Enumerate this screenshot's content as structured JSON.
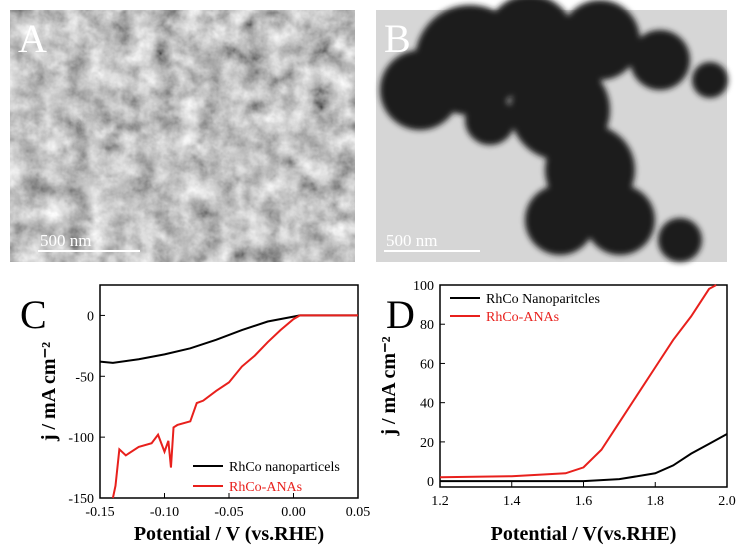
{
  "panels": [
    {
      "label": "A",
      "scale_bar": "500 nm"
    },
    {
      "label": "B",
      "scale_bar": "500 nm"
    }
  ],
  "chart_data": [
    {
      "type": "line",
      "panel_label": "C",
      "xlabel": "Potential / V (vs.RHE)",
      "ylabel": "j / mA cm⁻²",
      "xlim": [
        -0.15,
        0.05
      ],
      "ylim": [
        -150,
        25
      ],
      "xticks": [
        -0.15,
        {
          "value": -0.1,
          "label": "-0.10"
        },
        -0.05,
        {
          "value": 0,
          "label": "0.00"
        },
        0.05
      ],
      "yticks": [
        0,
        -50,
        -100,
        -150
      ],
      "legend": "lower-right",
      "series": [
        {
          "name": "RhCo nanoparticels",
          "color": "#000000",
          "x": [
            -0.15,
            -0.14,
            -0.12,
            -0.1,
            -0.08,
            -0.06,
            -0.04,
            -0.02,
            0,
            0.005,
            0.05
          ],
          "values": [
            -38,
            -39,
            -36,
            -32,
            -27,
            -20,
            -12,
            -5,
            -1,
            0,
            0
          ]
        },
        {
          "name": "RhCo-ANAs",
          "color": "#e8201c",
          "x": [
            -0.14,
            -0.138,
            -0.135,
            -0.13,
            -0.12,
            -0.11,
            -0.105,
            -0.1,
            -0.097,
            -0.095,
            -0.093,
            -0.09,
            -0.08,
            -0.075,
            -0.07,
            -0.06,
            -0.05,
            -0.04,
            -0.03,
            -0.02,
            -0.01,
            0,
            0.005,
            0.05
          ],
          "values": [
            -150,
            -140,
            -110,
            -115,
            -108,
            -105,
            -98,
            -112,
            -103,
            -125,
            -92,
            -90,
            -87,
            -72,
            -70,
            -62,
            -55,
            -42,
            -33,
            -22,
            -12,
            -3,
            0,
            0
          ]
        }
      ]
    },
    {
      "type": "line",
      "panel_label": "D",
      "xlabel": "Potential / V(vs.RHE)",
      "ylabel": "j / mA cm⁻²",
      "xlim": [
        1.2,
        2.0
      ],
      "ylim": [
        -3,
        100
      ],
      "xticks": [
        1.2,
        1.4,
        1.6,
        1.8,
        {
          "value": 2.0,
          "label": "2.0"
        }
      ],
      "yticks": [
        0,
        20,
        40,
        60,
        80,
        100
      ],
      "legend": "upper-left",
      "series": [
        {
          "name": "RhCo Nanoparitcles",
          "color": "#000000",
          "x": [
            1.2,
            1.6,
            1.7,
            1.8,
            1.85,
            1.9,
            1.95,
            2.0
          ],
          "values": [
            0,
            0,
            1,
            4,
            8,
            14,
            19,
            24
          ]
        },
        {
          "name": "RhCo-ANAs",
          "color": "#e8201c",
          "x": [
            1.2,
            1.4,
            1.55,
            1.6,
            1.65,
            1.7,
            1.75,
            1.8,
            1.85,
            1.9,
            1.95,
            1.97
          ],
          "values": [
            2,
            2.5,
            4,
            7,
            16,
            30,
            44,
            58,
            72,
            84,
            98,
            100
          ]
        }
      ]
    }
  ]
}
